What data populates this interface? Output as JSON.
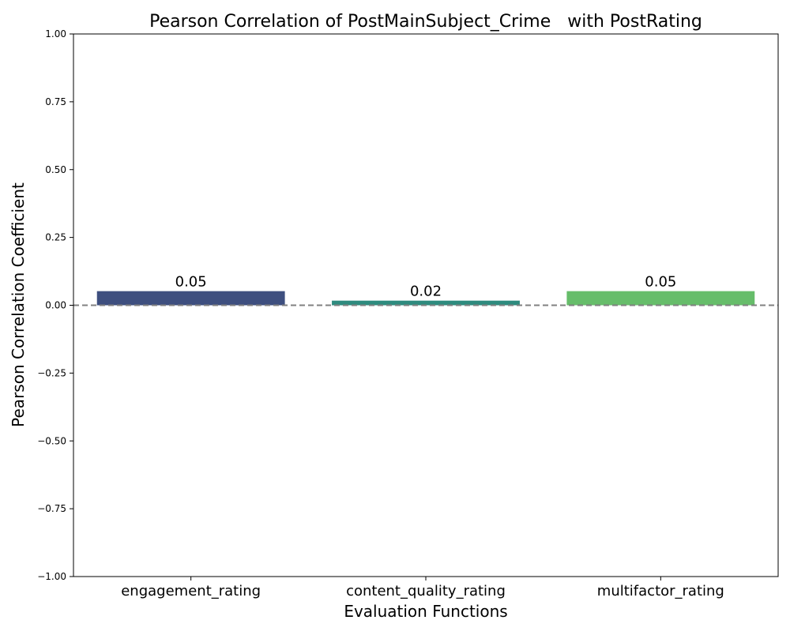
{
  "chart_data": {
    "type": "bar",
    "title": "Pearson Correlation of PostMainSubject_Crime   with PostRating",
    "xlabel": "Evaluation Functions",
    "ylabel": "Pearson Correlation Coefficient",
    "categories": [
      "engagement_rating",
      "content_quality_rating",
      "multifactor_rating"
    ],
    "values": [
      0.052,
      0.017,
      0.052
    ],
    "value_labels": [
      "0.05",
      "0.02",
      "0.05"
    ],
    "bar_colors": [
      "#3e4f7f",
      "#2e8b7e",
      "#66bd6a"
    ],
    "ylim": [
      -1.0,
      1.0
    ],
    "yticks": [
      "1.00",
      "0.75",
      "0.50",
      "0.25",
      "0.00",
      "−0.25",
      "−0.50",
      "−0.75",
      "−1.00"
    ],
    "reference_line": {
      "y": 0,
      "style": "dashed",
      "color": "#808080"
    },
    "grid": false,
    "legend": "none"
  }
}
